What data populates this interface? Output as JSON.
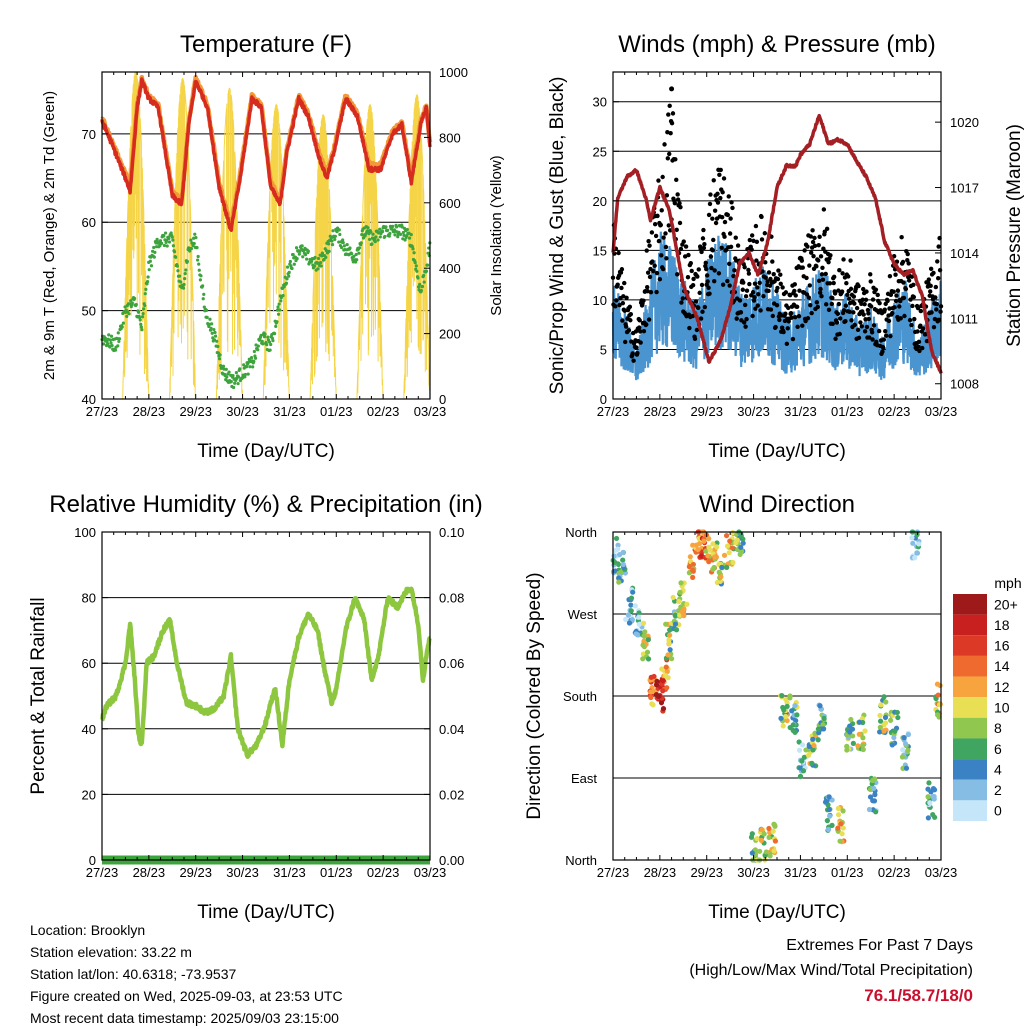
{
  "panels": {
    "temperature": {
      "title": "Temperature (F)",
      "ylabel_left": "2m & 9m T (Red, Orange) & 2m Td (Green)",
      "ylabel_right": "Solar Insolation (Yellow)",
      "xlabel": "Time (Day/UTC)"
    },
    "winds": {
      "title": "Winds (mph) & Pressure (mb)",
      "ylabel_left": "Sonic/Prop Wind & Gust (Blue, Black)",
      "ylabel_right": "Station Pressure (Maroon)",
      "xlabel": "Time (Day/UTC)"
    },
    "humidity": {
      "title": "Relative Humidity (%) & Precipitation (in)",
      "ylabel_left": "Percent & Total Rainfall",
      "xlabel": "Time (Day/UTC)"
    },
    "direction": {
      "title": "Wind Direction",
      "ylabel_left": "Direction (Colored By Speed)",
      "xlabel": "Time (Day/UTC)",
      "legend_title": "mph",
      "legend_labels": [
        "20+",
        "18",
        "16",
        "14",
        "12",
        "10",
        "8",
        "6",
        "4",
        "2",
        "0"
      ],
      "legend_colors": [
        "#9e1a1a",
        "#c8201f",
        "#dc3a26",
        "#ef6a2e",
        "#f7a43f",
        "#e8df55",
        "#8fc74f",
        "#3fa560",
        "#3b82c4",
        "#86bde5",
        "#c4e6f8"
      ]
    }
  },
  "info": {
    "location": "Location: Brooklyn",
    "elevation": "Station elevation: 33.22 m",
    "latlon": "Station lat/lon: 40.6318; -73.9537",
    "created": "Figure created on Wed, 2025-09-03, at 23:53 UTC",
    "recent": "Most recent data timestamp: 2025/09/03 23:15:00"
  },
  "extremes": {
    "title": "Extremes For Past 7 Days",
    "subtitle": "(High/Low/Max Wind/Total Precipitation)",
    "values": "76.1/58.7/18/0"
  },
  "chart_data": [
    {
      "type": "line",
      "title": "Temperature (F)",
      "xlabel": "Time (Day/UTC)",
      "ylabel": "2m & 9m T (Red, Orange) & 2m Td (Green)",
      "y2label": "Solar Insolation (Yellow)",
      "x_ticks": [
        "27/23",
        "28/23",
        "29/23",
        "30/23",
        "31/23",
        "01/23",
        "02/23",
        "03/23"
      ],
      "xlim": [
        0,
        7
      ],
      "ylim": [
        40,
        77
      ],
      "y_ticks": [
        40,
        50,
        60,
        70
      ],
      "y2lim": [
        0,
        1000
      ],
      "y2_ticks": [
        0,
        200,
        400,
        600,
        800,
        1000
      ],
      "grid": "horizontal",
      "series": [
        {
          "name": "2m T",
          "color": "#d62b1f",
          "x": [
            0,
            0.2,
            0.5,
            0.6,
            0.75,
            0.85,
            1.0,
            1.2,
            1.5,
            1.7,
            1.85,
            2.0,
            2.25,
            2.5,
            2.75,
            2.95,
            3.2,
            3.4,
            3.6,
            3.8,
            3.95,
            4.2,
            4.4,
            4.65,
            4.8,
            4.95,
            5.2,
            5.45,
            5.7,
            5.95,
            6.2,
            6.4,
            6.6,
            6.8,
            6.92,
            7.0
          ],
          "y": [
            71.5,
            69,
            65,
            63.5,
            73,
            76,
            74,
            73,
            63,
            62,
            71,
            76,
            73,
            64,
            59,
            65,
            74,
            73,
            64,
            62,
            68,
            74,
            72,
            67,
            65,
            68,
            74,
            72,
            66,
            66,
            70,
            71,
            64.5,
            71,
            73,
            68.5
          ]
        },
        {
          "name": "9m T",
          "color": "#f29a3a",
          "x": [
            0,
            0.2,
            0.5,
            0.6,
            0.75,
            0.85,
            1.0,
            1.2,
            1.5,
            1.7,
            1.85,
            2.0,
            2.25,
            2.5,
            2.75,
            2.95,
            3.2,
            3.4,
            3.6,
            3.8,
            3.95,
            4.2,
            4.4,
            4.65,
            4.8,
            4.95,
            5.2,
            5.45,
            5.7,
            5.95,
            6.2,
            6.4,
            6.6,
            6.8,
            6.92,
            7.0
          ],
          "y": [
            71.8,
            69.3,
            65.5,
            64,
            73.3,
            76.3,
            74.3,
            73.3,
            63.5,
            62.5,
            71.3,
            76.3,
            73.3,
            64.5,
            59.5,
            65.5,
            74.3,
            73.3,
            64.5,
            62.5,
            68.3,
            74.3,
            72.3,
            67.5,
            65.5,
            68.3,
            74.3,
            72.3,
            66.5,
            66.5,
            70.3,
            71.3,
            65,
            71.3,
            73.3,
            68.8
          ]
        },
        {
          "name": "2m Td",
          "color": "#3da33d",
          "x": [
            0,
            0.3,
            0.5,
            0.7,
            0.85,
            1.0,
            1.2,
            1.5,
            1.7,
            1.85,
            2.0,
            2.2,
            2.4,
            2.6,
            2.8,
            3.0,
            3.2,
            3.4,
            3.6,
            3.8,
            4.0,
            4.2,
            4.4,
            4.6,
            4.8,
            5.0,
            5.2,
            5.4,
            5.6,
            5.8,
            6.0,
            6.2,
            6.4,
            6.6,
            6.8,
            7.0
          ],
          "y": [
            47,
            46,
            50,
            51,
            48,
            55,
            58,
            58,
            52,
            57,
            58,
            50,
            47,
            43,
            42,
            43,
            44,
            47,
            46,
            51,
            55,
            57,
            56,
            55,
            57,
            59,
            57,
            56,
            59,
            58,
            59,
            59,
            59,
            58,
            52,
            57
          ]
        },
        {
          "name": "Solar Insolation",
          "color": "#f5d547",
          "axis": "right",
          "peak_x": [
            0.72,
            1.72,
            2.72,
            3.72,
            4.72,
            5.72,
            6.72
          ],
          "peak_y": [
            1000,
            980,
            950,
            900,
            870,
            900,
            930
          ]
        }
      ]
    },
    {
      "type": "scatter",
      "title": "Winds (mph) & Pressure (mb)",
      "xlabel": "Time (Day/UTC)",
      "ylabel": "Sonic/Prop Wind & Gust (Blue, Black)",
      "y2label": "Station Pressure (Maroon)",
      "x_ticks": [
        "27/23",
        "28/23",
        "29/23",
        "30/23",
        "31/23",
        "01/23",
        "02/23",
        "03/23"
      ],
      "xlim": [
        0,
        7
      ],
      "ylim": [
        0,
        33
      ],
      "y_ticks": [
        0,
        5,
        10,
        15,
        20,
        25,
        30
      ],
      "y2lim": [
        1007.3,
        1022.3
      ],
      "y2_ticks": [
        1008,
        1011,
        1014,
        1017,
        1020
      ],
      "grid": "horizontal",
      "series": [
        {
          "name": "Wind",
          "color": "#4a94d0",
          "x": [
            0,
            0.25,
            0.5,
            0.75,
            1.0,
            1.25,
            1.5,
            1.75,
            2.0,
            2.25,
            2.5,
            2.75,
            3.0,
            3.25,
            3.5,
            3.75,
            4.0,
            4.25,
            4.5,
            4.75,
            5.0,
            5.25,
            5.5,
            5.75,
            6.0,
            6.25,
            6.5,
            6.75,
            7.0
          ],
          "y": [
            8,
            6,
            3,
            7,
            11,
            10,
            8,
            6,
            9,
            11,
            10,
            7,
            8,
            9,
            7,
            5,
            7,
            8,
            9,
            6,
            7,
            5,
            6,
            4,
            7,
            8,
            4,
            6,
            8
          ]
        },
        {
          "name": "Gust",
          "color": "#000000",
          "x": [
            0,
            0.25,
            0.5,
            0.75,
            1.0,
            1.25,
            1.5,
            1.75,
            2.0,
            2.25,
            2.5,
            2.75,
            3.0,
            3.25,
            3.5,
            3.75,
            4.0,
            4.25,
            4.5,
            4.75,
            5.0,
            5.25,
            5.5,
            5.75,
            6.0,
            6.25,
            6.5,
            6.75,
            7.0
          ],
          "y": [
            17,
            10,
            6,
            14,
            20,
            28,
            15,
            11,
            17,
            22,
            18,
            12,
            15,
            17,
            12,
            9,
            13,
            15,
            17,
            11,
            13,
            10,
            11,
            8,
            13,
            15,
            8,
            11,
            15
          ]
        },
        {
          "name": "Station Pressure",
          "color": "#a31f24",
          "axis": "right",
          "x": [
            0,
            0.1,
            0.3,
            0.5,
            0.7,
            0.8,
            1.0,
            1.2,
            1.5,
            1.8,
            2.05,
            2.3,
            2.5,
            2.7,
            2.9,
            3.1,
            3.3,
            3.5,
            3.7,
            3.9,
            4.0,
            4.2,
            4.4,
            4.6,
            4.8,
            5.0,
            5.2,
            5.4,
            5.6,
            5.8,
            6.0,
            6.2,
            6.4,
            6.6,
            6.8,
            7.0
          ],
          "y": [
            1014,
            1016.5,
            1017.5,
            1017.8,
            1016.5,
            1015.5,
            1017,
            1016,
            1012.5,
            1011,
            1009,
            1010,
            1011.5,
            1013.5,
            1014,
            1013,
            1014.5,
            1017,
            1018,
            1018,
            1018.5,
            1019,
            1020.3,
            1019,
            1019.2,
            1019,
            1018.2,
            1017.5,
            1016.5,
            1014.5,
            1013.5,
            1013,
            1013.2,
            1012,
            1009.5,
            1008.5
          ]
        }
      ]
    },
    {
      "type": "line",
      "title": "Relative Humidity (%) & Precipitation (in)",
      "xlabel": "Time (Day/UTC)",
      "ylabel": "Percent & Total Rainfall",
      "x_ticks": [
        "27/23",
        "28/23",
        "29/23",
        "30/23",
        "31/23",
        "01/23",
        "02/23",
        "03/23"
      ],
      "xlim": [
        0,
        7
      ],
      "ylim": [
        0,
        100
      ],
      "y_ticks": [
        0,
        20,
        40,
        60,
        80,
        100
      ],
      "y2lim": [
        0,
        0.1
      ],
      "y2_ticks": [
        0.0,
        0.02,
        0.04,
        0.06,
        0.08,
        0.1
      ],
      "grid": "horizontal",
      "series": [
        {
          "name": "Relative Humidity",
          "color": "#8dc63f",
          "x": [
            0,
            0.1,
            0.3,
            0.5,
            0.6,
            0.7,
            0.78,
            0.85,
            0.95,
            1.1,
            1.3,
            1.45,
            1.6,
            1.8,
            2.0,
            2.2,
            2.4,
            2.6,
            2.75,
            2.9,
            3.1,
            3.3,
            3.5,
            3.6,
            3.7,
            3.85,
            4.0,
            4.2,
            4.4,
            4.6,
            4.75,
            4.9,
            5.0,
            5.2,
            5.4,
            5.6,
            5.75,
            5.9,
            6.1,
            6.3,
            6.5,
            6.6,
            6.75,
            6.85,
            6.95,
            7.0
          ],
          "y": [
            43,
            47,
            50,
            60,
            72,
            55,
            38,
            35,
            60,
            62,
            70,
            73,
            60,
            48,
            47,
            45,
            46,
            50,
            62,
            40,
            32,
            35,
            42,
            48,
            52,
            35,
            55,
            68,
            75,
            70,
            58,
            48,
            52,
            70,
            80,
            73,
            55,
            62,
            80,
            77,
            82,
            83,
            72,
            55,
            65,
            68
          ]
        },
        {
          "name": "Total Precipitation",
          "color": "#3da33d",
          "axis": "right",
          "x": [
            0,
            7
          ],
          "y": [
            0,
            0
          ]
        }
      ]
    },
    {
      "type": "scatter",
      "title": "Wind Direction",
      "xlabel": "Time (Day/UTC)",
      "ylabel": "Direction (Colored By Speed)",
      "x_ticks": [
        "27/23",
        "28/23",
        "29/23",
        "30/23",
        "31/23",
        "01/23",
        "02/23",
        "03/23"
      ],
      "xlim": [
        0,
        7
      ],
      "ylim": [
        0,
        360
      ],
      "y_tick_labels": [
        "North",
        "East",
        "South",
        "West",
        "North"
      ],
      "grid": "horizontal",
      "colorbar": {
        "title": "mph",
        "labels": [
          "20+",
          "18",
          "16",
          "14",
          "12",
          "10",
          "8",
          "6",
          "4",
          "2",
          "0"
        ]
      },
      "series": [
        {
          "name": "Direction",
          "x": [
            0.05,
            0.2,
            0.35,
            0.55,
            0.7,
            0.85,
            1.0,
            1.1,
            1.2,
            1.35,
            1.5,
            1.7,
            1.85,
            2.0,
            2.15,
            2.3,
            2.5,
            2.7,
            3.0,
            3.2,
            3.4,
            3.65,
            3.85,
            4.05,
            4.25,
            4.45,
            4.6,
            4.85,
            5.05,
            5.3,
            5.55,
            5.75,
            6.0,
            6.25,
            6.45,
            6.8,
            6.95
          ],
          "y": [
            335,
            320,
            280,
            260,
            240,
            190,
            180,
            205,
            240,
            270,
            285,
            330,
            350,
            345,
            335,
            315,
            340,
            350,
            10,
            15,
            20,
            165,
            160,
            110,
            120,
            150,
            50,
            40,
            135,
            140,
            70,
            160,
            145,
            120,
            350,
            65,
            175
          ],
          "speed": [
            4,
            4,
            2,
            3,
            10,
            14,
            18,
            14,
            8,
            6,
            10,
            12,
            14,
            12,
            10,
            8,
            10,
            6,
            6,
            8,
            10,
            8,
            6,
            4,
            8,
            6,
            4,
            10,
            6,
            8,
            4,
            8,
            6,
            4,
            3,
            4,
            10
          ]
        }
      ]
    }
  ]
}
